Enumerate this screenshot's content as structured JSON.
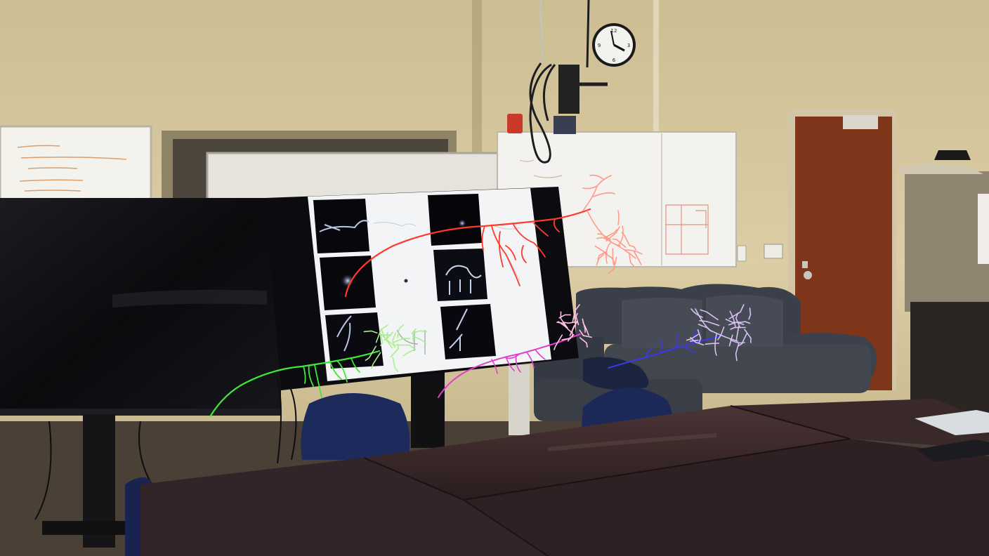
{
  "scene": {
    "palette": {
      "wall": "#d9caa0",
      "wall_shadow": "#b9a97e",
      "table": "#3a2a2b",
      "table_highlight": "#5a4344",
      "sofa": "#3b3f48",
      "chair": "#1c2a5a",
      "door": "#8a3a1e",
      "screen_dark": "#0d0d10",
      "screen_light": "#f2f4f6",
      "floor": "#4a4036"
    },
    "neuron_overlays": [
      {
        "name": "red-neuron",
        "color": "#ff3a2a"
      },
      {
        "name": "salmon-neuron",
        "color": "#ff9a8a"
      },
      {
        "name": "green-neuron",
        "color": "#3fe83a"
      },
      {
        "name": "light-green-neuron",
        "color": "#a8f08a"
      },
      {
        "name": "magenta-neuron",
        "color": "#e040c8"
      },
      {
        "name": "pink-neuron",
        "color": "#ffc0e8"
      },
      {
        "name": "blue-neuron",
        "color": "#3a3ae8"
      },
      {
        "name": "lavender-neuron",
        "color": "#d8c0f0"
      }
    ],
    "clock": {
      "numerals": [
        "12",
        "3",
        "6",
        "9"
      ]
    }
  }
}
